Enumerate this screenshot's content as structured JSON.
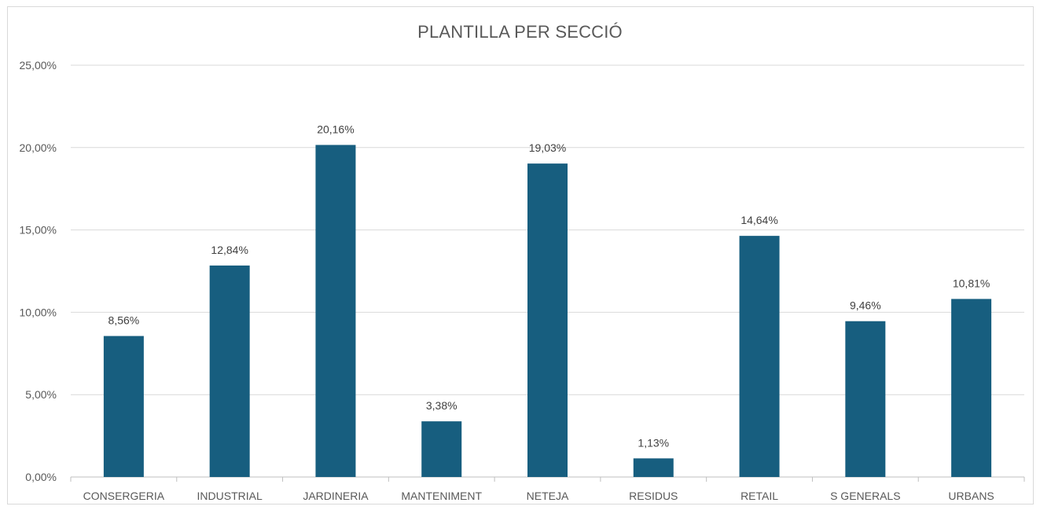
{
  "chart_data": {
    "type": "bar",
    "title": "PLANTILLA PER SECCIÓ",
    "xlabel": "",
    "ylabel": "",
    "categories": [
      "CONSERGERIA",
      "INDUSTRIAL",
      "JARDINERIA",
      "MANTENIMENT",
      "NETEJA",
      "RESIDUS",
      "RETAIL",
      "S GENERALS",
      "URBANS"
    ],
    "values": [
      8.56,
      12.84,
      20.16,
      3.38,
      19.03,
      1.13,
      14.64,
      9.46,
      10.81
    ],
    "data_labels": [
      "8,56%",
      "12,84%",
      "20,16%",
      "3,38%",
      "19,03%",
      "1,13%",
      "14,64%",
      "9,46%",
      "10,81%"
    ],
    "ylim": [
      0,
      25
    ],
    "y_ticks": [
      0,
      5,
      10,
      15,
      20,
      25
    ],
    "y_tick_labels": [
      "0,00%",
      "5,00%",
      "10,00%",
      "15,00%",
      "20,00%",
      "25,00%"
    ],
    "grid": true,
    "legend": "none",
    "bar_color": "#175E7F",
    "grid_color": "#d9d9d9",
    "axis_color": "#bfbfbf"
  }
}
